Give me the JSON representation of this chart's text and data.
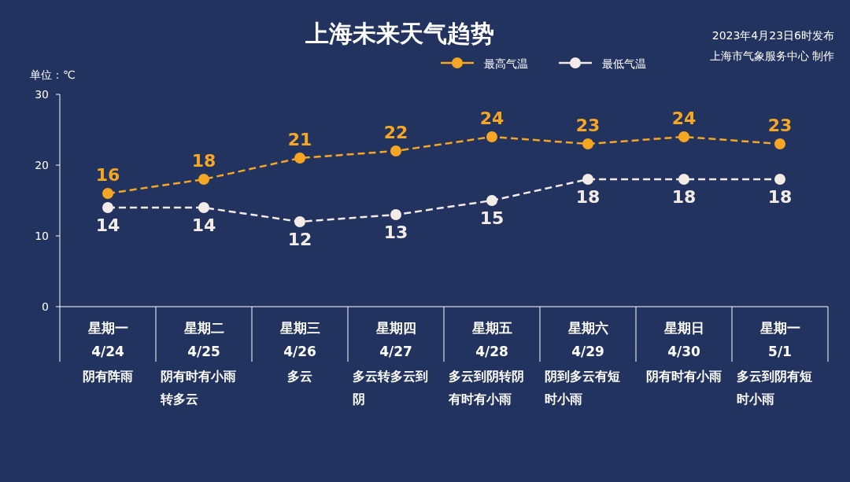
{
  "chart_data": {
    "type": "line",
    "title": "上海未来天气趋势",
    "ylabel": "单位：℃",
    "annotations": [
      "2023年4月23日6时发布",
      "上海市气象服务中心 制作"
    ],
    "categories": [
      "星期一\n4/24\n阴有阵雨",
      "星期二\n4/25\n阴有时有小雨转多云",
      "星期三\n4/26\n多云",
      "星期四\n4/27\n多云转多云到阴",
      "星期五\n4/28\n多云到阴转阴有时有小雨",
      "星期六\n4/29\n阴到多云有短时小雨",
      "星期日\n4/30\n阴有时有小雨",
      "星期一\n5/1\n多云到阴有短时小雨"
    ],
    "series": [
      {
        "name": "最高气温",
        "color": "#f5a623",
        "values": [
          16,
          18,
          21,
          22,
          24,
          23,
          24,
          23
        ]
      },
      {
        "name": "最低气温",
        "color": "#f3ebe6",
        "values": [
          14,
          14,
          12,
          13,
          15,
          18,
          18,
          18
        ]
      }
    ],
    "ylim": [
      0,
      30
    ],
    "yticks": [
      0,
      10,
      20,
      30
    ],
    "legend": "top",
    "marker": "circle",
    "line_style": "dashed",
    "data_labels": true
  }
}
